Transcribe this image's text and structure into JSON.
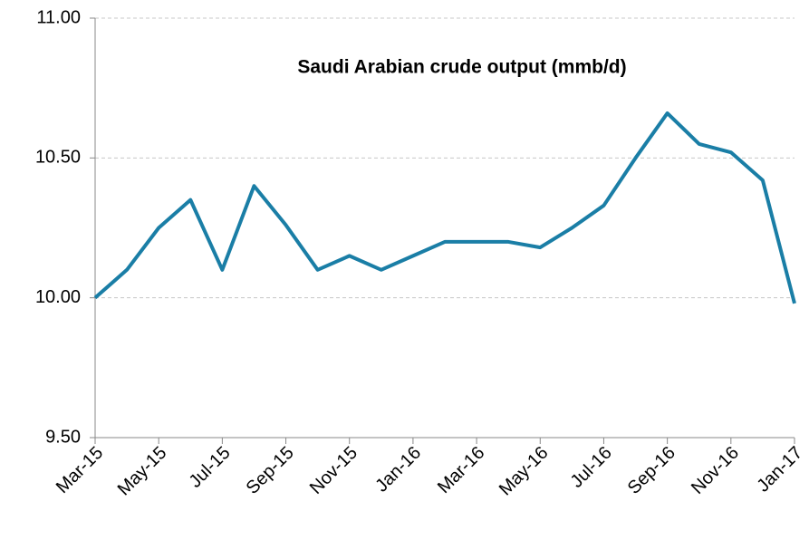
{
  "chart_data": {
    "type": "line",
    "title": "Saudi Arabian crude output (mmb/d)",
    "categories": [
      "Mar-15",
      null,
      "May-15",
      null,
      "Jul-15",
      null,
      "Sep-15",
      null,
      "Nov-15",
      null,
      "Jan-16",
      null,
      "Mar-16",
      null,
      "May-16",
      null,
      "Jul-16",
      null,
      "Sep-16",
      null,
      "Nov-16",
      null,
      "Jan-17"
    ],
    "series": [
      {
        "name": "Saudi Arabian crude output",
        "color": "#1a7ea6",
        "values": [
          10.0,
          10.1,
          10.25,
          10.35,
          10.1,
          10.4,
          10.26,
          10.1,
          10.15,
          10.1,
          10.15,
          10.2,
          10.2,
          10.2,
          10.18,
          10.25,
          10.33,
          10.5,
          10.66,
          10.55,
          10.52,
          10.42,
          9.98
        ]
      }
    ],
    "ylim": [
      9.5,
      11.0
    ],
    "yticks": [
      {
        "value": 9.5,
        "label": "9.50"
      },
      {
        "value": 10.0,
        "label": "10.00"
      },
      {
        "value": 10.5,
        "label": "10.50"
      },
      {
        "value": 11.0,
        "label": "11.00"
      }
    ],
    "grid": true
  }
}
